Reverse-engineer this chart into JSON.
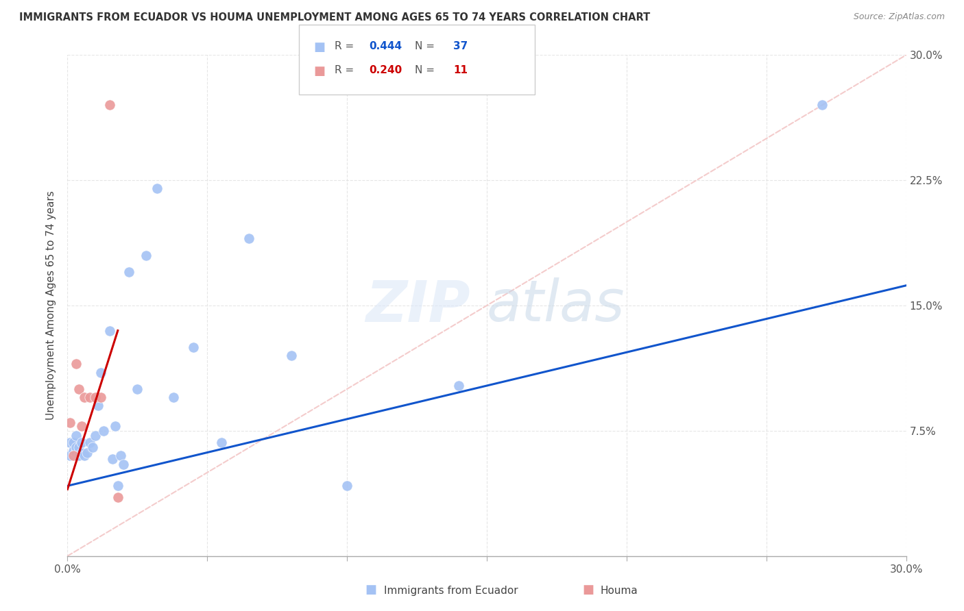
{
  "title": "IMMIGRANTS FROM ECUADOR VS HOUMA UNEMPLOYMENT AMONG AGES 65 TO 74 YEARS CORRELATION CHART",
  "source": "Source: ZipAtlas.com",
  "ylabel": "Unemployment Among Ages 65 to 74 years",
  "xlabel_blue": "Immigrants from Ecuador",
  "xlabel_pink": "Houma",
  "xlim": [
    0.0,
    0.3
  ],
  "ylim": [
    0.0,
    0.3
  ],
  "xticks": [
    0.0,
    0.05,
    0.1,
    0.15,
    0.2,
    0.25,
    0.3
  ],
  "yticks": [
    0.0,
    0.075,
    0.15,
    0.225,
    0.3
  ],
  "xticklabels": [
    "0.0%",
    "",
    "",
    "",
    "",
    "",
    "30.0%"
  ],
  "yticklabels_right": [
    "",
    "7.5%",
    "15.0%",
    "22.5%",
    "30.0%"
  ],
  "legend_blue_R": "0.444",
  "legend_blue_N": "37",
  "legend_pink_R": "0.240",
  "legend_pink_N": "11",
  "blue_color": "#a4c2f4",
  "pink_color": "#ea9999",
  "blue_line_color": "#1155cc",
  "pink_line_color": "#cc0000",
  "dashed_line_color": "#f4cccc",
  "watermark_zip": "ZIP",
  "watermark_atlas": "atlas",
  "blue_scatter_x": [
    0.001,
    0.001,
    0.002,
    0.002,
    0.003,
    0.003,
    0.003,
    0.004,
    0.004,
    0.005,
    0.005,
    0.006,
    0.007,
    0.008,
    0.009,
    0.01,
    0.011,
    0.012,
    0.013,
    0.015,
    0.016,
    0.017,
    0.018,
    0.019,
    0.02,
    0.022,
    0.025,
    0.028,
    0.032,
    0.038,
    0.045,
    0.055,
    0.065,
    0.08,
    0.1,
    0.14,
    0.27
  ],
  "blue_scatter_y": [
    0.06,
    0.068,
    0.063,
    0.068,
    0.062,
    0.065,
    0.072,
    0.06,
    0.065,
    0.062,
    0.068,
    0.06,
    0.062,
    0.068,
    0.065,
    0.072,
    0.09,
    0.11,
    0.075,
    0.135,
    0.058,
    0.078,
    0.042,
    0.06,
    0.055,
    0.17,
    0.1,
    0.18,
    0.22,
    0.095,
    0.125,
    0.068,
    0.19,
    0.12,
    0.042,
    0.102,
    0.27
  ],
  "pink_scatter_x": [
    0.001,
    0.002,
    0.003,
    0.004,
    0.005,
    0.006,
    0.008,
    0.01,
    0.012,
    0.015,
    0.018
  ],
  "pink_scatter_y": [
    0.08,
    0.06,
    0.115,
    0.1,
    0.078,
    0.095,
    0.095,
    0.095,
    0.095,
    0.27,
    0.035
  ],
  "blue_line_x0": 0.0,
  "blue_line_y0": 0.042,
  "blue_line_x1": 0.3,
  "blue_line_y1": 0.162,
  "pink_line_x0": 0.0,
  "pink_line_y0": 0.04,
  "pink_line_x1": 0.018,
  "pink_line_y1": 0.135,
  "bg_color": "#ffffff",
  "grid_color": "#e0e0e0"
}
